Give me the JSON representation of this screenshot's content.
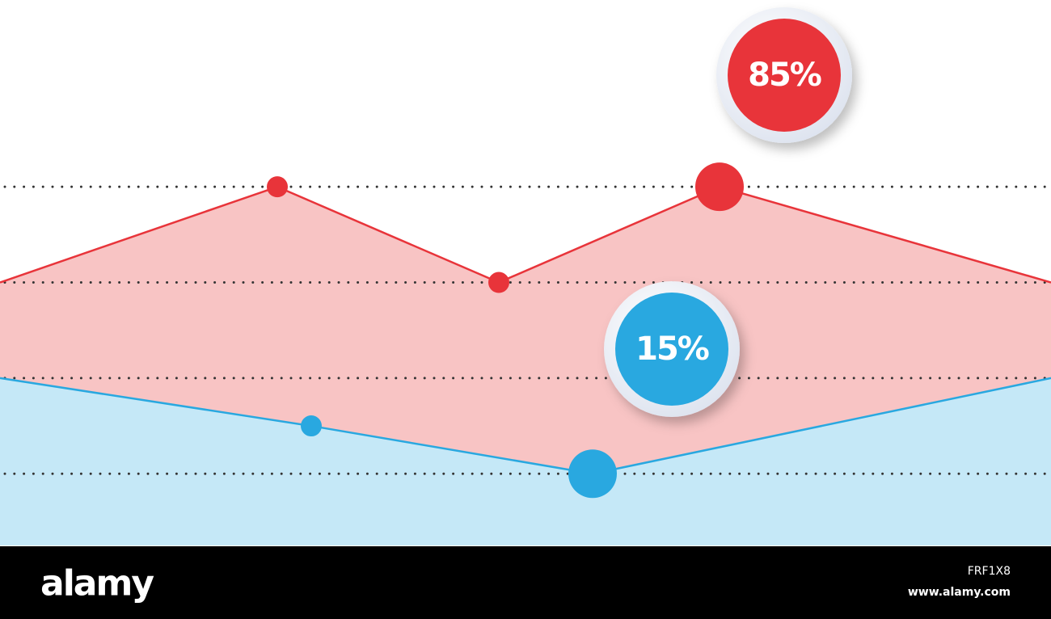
{
  "chart_data": {
    "type": "area",
    "xlim": [
      0,
      1300
    ],
    "ylim": [
      0.25,
      5
    ],
    "yticks": [
      1,
      2,
      3,
      4
    ],
    "grid": true,
    "series": [
      {
        "name": "85%",
        "color": "#e8343a",
        "fill": "#f8c4c4",
        "x": [
          0,
          343,
          617,
          890,
          1300
        ],
        "values": [
          3,
          4,
          3,
          4,
          3
        ]
      },
      {
        "name": "15%",
        "color": "#29a8e0",
        "fill": "#c5e8f7",
        "x": [
          0,
          385,
          733,
          1300
        ],
        "values": [
          2,
          1.5,
          1,
          2
        ]
      }
    ]
  },
  "footer": {
    "logo": "alamy",
    "image_id": "FRF1X8",
    "url": "www.alamy.com"
  }
}
